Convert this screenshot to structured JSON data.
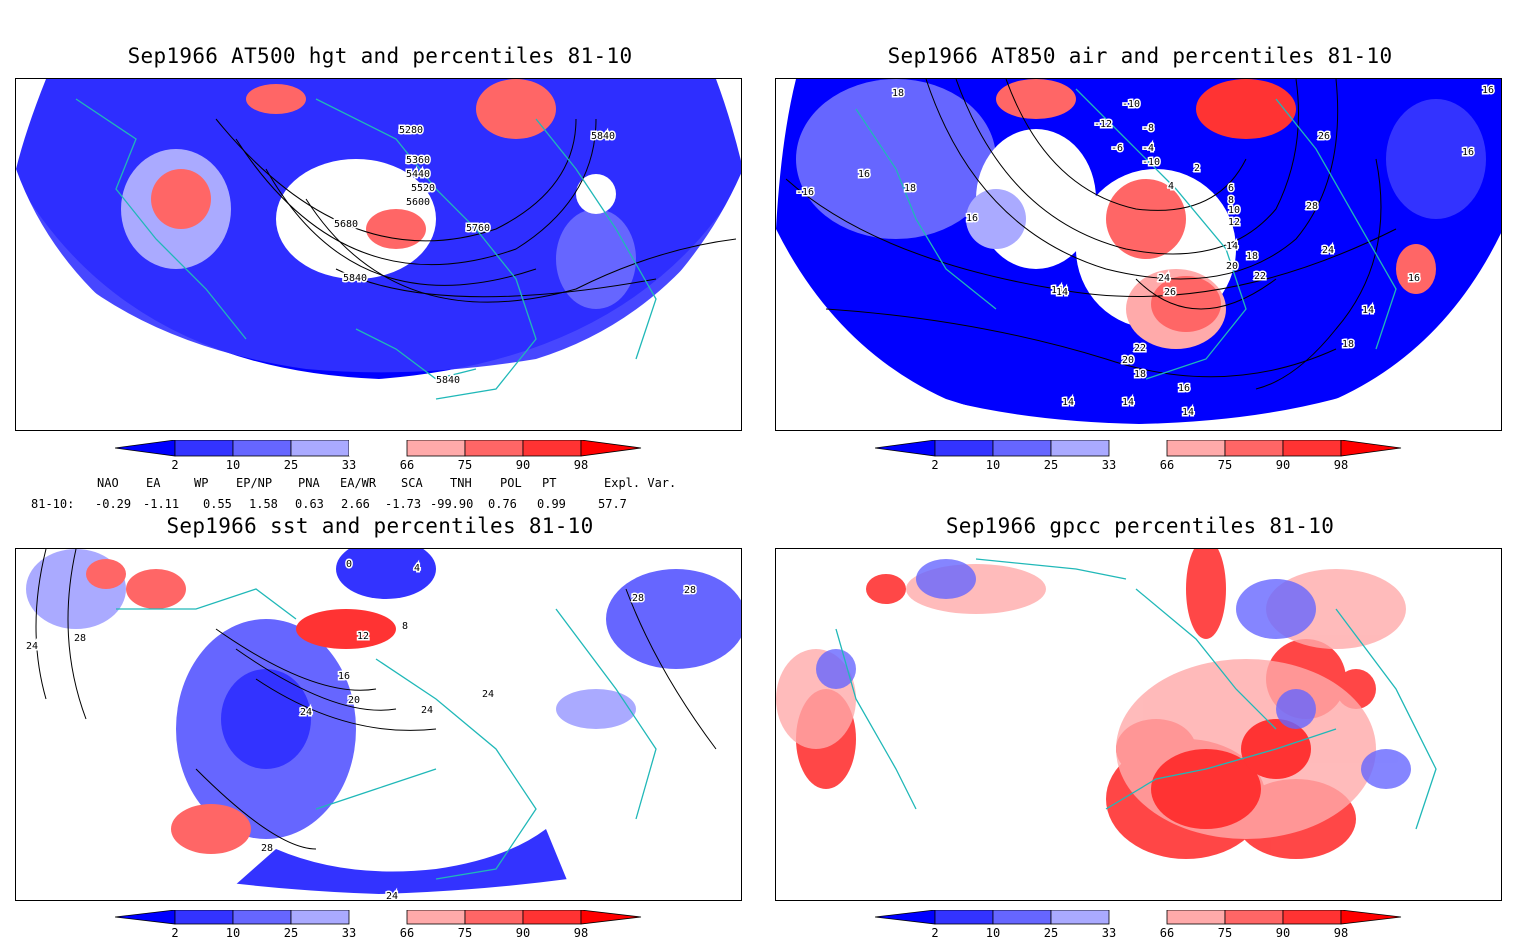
{
  "panels": [
    {
      "title": "Sep1966 AT500 hgt and percentiles 81-10",
      "contour_labels": [
        "5280",
        "5360",
        "5440",
        "5520",
        "5600",
        "5680",
        "5760",
        "5840",
        "5840",
        "5840"
      ]
    },
    {
      "title": "Sep1966 AT850 air and percentiles 81-10",
      "contour_labels": [
        "18",
        "-10",
        "-12",
        "-8",
        "-6",
        "-4",
        "-10",
        "2",
        "4",
        "6",
        "8",
        "10",
        "12",
        "16",
        "18",
        "16",
        "14",
        "22",
        "26",
        "28",
        "24",
        "16",
        "14",
        "20",
        "18",
        "26",
        "24",
        "22",
        "20",
        "18",
        "16",
        "14",
        "14",
        "14",
        "14",
        "18",
        "16",
        "16",
        "14",
        "-16"
      ]
    },
    {
      "title": "Sep1966 sst and percentiles 81-10",
      "contour_labels": [
        "0",
        "4",
        "8",
        "12",
        "16",
        "20",
        "24",
        "28",
        "24",
        "28",
        "28",
        "24",
        "24",
        "24",
        "28"
      ]
    },
    {
      "title": "Sep1966 gpcc percentiles 81-10",
      "contour_labels": []
    }
  ],
  "colorbar": {
    "ticks": [
      "2",
      "10",
      "25",
      "33",
      "66",
      "75",
      "90",
      "98"
    ],
    "colors": {
      "below_2": "#0000ff",
      "2_10": "#3333ff",
      "10_25": "#6666ff",
      "25_33": "#aaaaff",
      "33_66": "#ffffff",
      "66_75": "#ffaaaa",
      "75_90": "#ff6666",
      "90_98": "#ff3333",
      "above_98": "#ff0000"
    }
  },
  "indices": {
    "row_label": "81-10:",
    "headers": [
      "NAO",
      "EA",
      "WP",
      "EP/NP",
      "PNA",
      "EA/WR",
      "SCA",
      "TNH",
      "POL",
      "PT",
      "Expl. Var."
    ],
    "values": [
      "-0.29",
      "-1.11",
      "0.55",
      "1.58",
      "0.63",
      "2.66",
      "-1.73",
      "-99.90",
      "0.76",
      "0.99",
      "57.7"
    ]
  },
  "map_colors": {
    "coast": "#20b8b8",
    "deep_blue": "#0000ff",
    "blue": "#3333ff",
    "mid_blue": "#6666ff",
    "light_blue": "#aaaaff",
    "light_red": "#ffaaaa",
    "red": "#ff6666",
    "strong_red": "#ff3333",
    "deep_red": "#ff0000"
  }
}
